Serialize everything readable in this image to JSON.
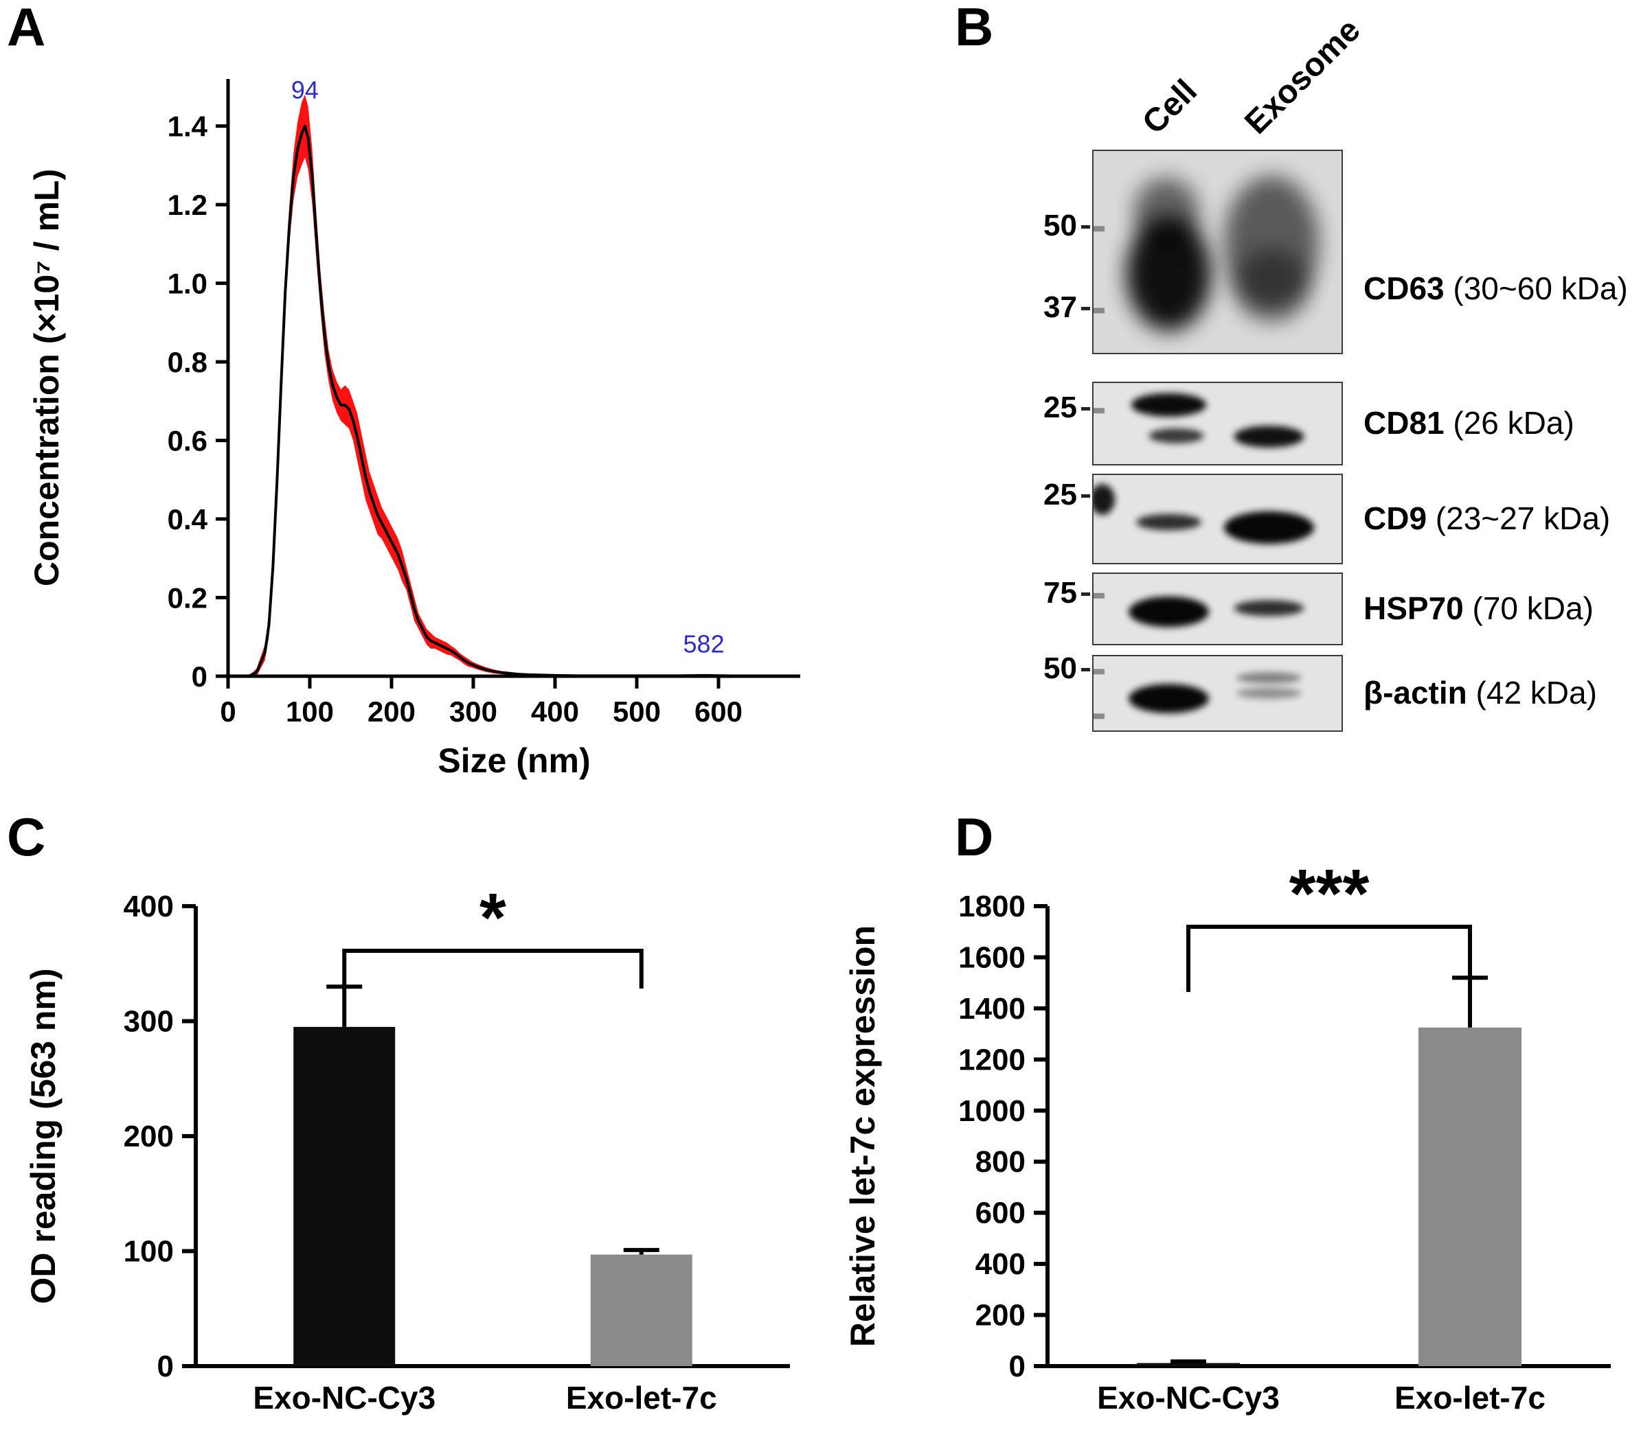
{
  "panels": {
    "a": {
      "label": "A"
    },
    "b": {
      "label": "B"
    },
    "c": {
      "label": "C"
    },
    "d": {
      "label": "D"
    }
  },
  "chart_data": [
    {
      "id": "chart-a",
      "panel": "A",
      "type": "line",
      "title": "",
      "xlabel": "Size (nm)",
      "ylabel": "Concentration (×10⁷ / mL)",
      "xlim": [
        0,
        700
      ],
      "ylim": [
        0,
        1.52
      ],
      "xticks": [
        [
          0,
          "0"
        ],
        [
          100,
          "100"
        ],
        [
          200,
          "200"
        ],
        [
          300,
          "300"
        ],
        [
          400,
          "400"
        ],
        [
          500,
          "500"
        ],
        [
          600,
          "600"
        ]
      ],
      "yticks": [
        [
          0,
          "0"
        ],
        [
          0.2,
          "0.2"
        ],
        [
          0.4,
          "0.4"
        ],
        [
          0.6,
          "0.6"
        ],
        [
          0.8,
          "0.8"
        ],
        [
          1.0,
          "1.0"
        ],
        [
          1.2,
          "1.2"
        ],
        [
          1.4,
          "1.4"
        ]
      ],
      "line_color": "#000000",
      "band_color": "#ff1111",
      "annotation_color": "#2a2ad0",
      "annotations": [
        {
          "text": "94",
          "x": 94,
          "y": 1.47
        },
        {
          "text": "582",
          "x": 582,
          "y": 0.06
        }
      ],
      "points": [
        [
          25,
          0.0,
          0.0
        ],
        [
          35,
          0.01,
          0.01
        ],
        [
          45,
          0.06,
          0.02
        ],
        [
          50,
          0.13,
          0.03
        ],
        [
          55,
          0.28,
          0.04
        ],
        [
          60,
          0.5,
          0.05
        ],
        [
          65,
          0.75,
          0.05
        ],
        [
          70,
          0.98,
          0.05
        ],
        [
          75,
          1.15,
          0.05
        ],
        [
          80,
          1.27,
          0.06
        ],
        [
          85,
          1.34,
          0.07
        ],
        [
          90,
          1.38,
          0.08
        ],
        [
          94,
          1.4,
          0.08
        ],
        [
          98,
          1.37,
          0.08
        ],
        [
          103,
          1.27,
          0.07
        ],
        [
          108,
          1.12,
          0.06
        ],
        [
          113,
          0.98,
          0.05
        ],
        [
          118,
          0.87,
          0.05
        ],
        [
          123,
          0.79,
          0.04
        ],
        [
          128,
          0.74,
          0.04
        ],
        [
          133,
          0.71,
          0.04
        ],
        [
          138,
          0.69,
          0.04
        ],
        [
          143,
          0.69,
          0.05
        ],
        [
          148,
          0.68,
          0.05
        ],
        [
          153,
          0.65,
          0.05
        ],
        [
          158,
          0.61,
          0.06
        ],
        [
          163,
          0.56,
          0.06
        ],
        [
          168,
          0.51,
          0.06
        ],
        [
          173,
          0.47,
          0.05
        ],
        [
          178,
          0.44,
          0.05
        ],
        [
          183,
          0.41,
          0.05
        ],
        [
          188,
          0.39,
          0.04
        ],
        [
          193,
          0.37,
          0.04
        ],
        [
          198,
          0.35,
          0.04
        ],
        [
          203,
          0.33,
          0.04
        ],
        [
          208,
          0.31,
          0.04
        ],
        [
          213,
          0.28,
          0.04
        ],
        [
          218,
          0.25,
          0.03
        ],
        [
          223,
          0.21,
          0.03
        ],
        [
          228,
          0.17,
          0.03
        ],
        [
          233,
          0.14,
          0.02
        ],
        [
          238,
          0.12,
          0.02
        ],
        [
          243,
          0.1,
          0.02
        ],
        [
          248,
          0.09,
          0.02
        ],
        [
          253,
          0.085,
          0.015
        ],
        [
          258,
          0.08,
          0.015
        ],
        [
          263,
          0.075,
          0.015
        ],
        [
          268,
          0.07,
          0.015
        ],
        [
          273,
          0.065,
          0.012
        ],
        [
          278,
          0.058,
          0.012
        ],
        [
          283,
          0.05,
          0.01
        ],
        [
          288,
          0.042,
          0.01
        ],
        [
          293,
          0.035,
          0.01
        ],
        [
          298,
          0.03,
          0.008
        ],
        [
          305,
          0.024,
          0.007
        ],
        [
          315,
          0.017,
          0.006
        ],
        [
          325,
          0.012,
          0.005
        ],
        [
          335,
          0.009,
          0.004
        ],
        [
          345,
          0.007,
          0.004
        ],
        [
          355,
          0.005,
          0.003
        ],
        [
          365,
          0.004,
          0.003
        ],
        [
          380,
          0.003,
          0.002
        ],
        [
          400,
          0.002,
          0.002
        ],
        [
          430,
          0.001,
          0.001
        ],
        [
          470,
          0.001,
          0.001
        ],
        [
          510,
          0.001,
          0.001
        ],
        [
          550,
          0.001,
          0.001
        ],
        [
          582,
          0.002,
          0.002
        ],
        [
          610,
          0.001,
          0.001
        ],
        [
          650,
          0.0,
          0.0
        ]
      ]
    },
    {
      "id": "chart-c",
      "panel": "C",
      "type": "bar",
      "title": "",
      "xlabel": "",
      "ylabel": "OD reading (563 nm)",
      "ylim": [
        0,
        400
      ],
      "yticks": [
        [
          0,
          "0"
        ],
        [
          100,
          "100"
        ],
        [
          200,
          "200"
        ],
        [
          300,
          "300"
        ],
        [
          400,
          "400"
        ]
      ],
      "categories": [
        "Exo-NC-Cy3",
        "Exo-let-7c"
      ],
      "values": [
        295,
        97
      ],
      "errors": [
        35,
        4
      ],
      "bar_colors": [
        "#0d0d0d",
        "#8a8a8a"
      ],
      "significance": "*"
    },
    {
      "id": "chart-d",
      "panel": "D",
      "type": "bar",
      "title": "",
      "xlabel": "",
      "ylabel": "Relative let-7c expression",
      "ylim": [
        0,
        1800
      ],
      "yticks": [
        [
          0,
          "0"
        ],
        [
          200,
          "200"
        ],
        [
          400,
          "400"
        ],
        [
          600,
          "600"
        ],
        [
          800,
          "800"
        ],
        [
          1000,
          "1000"
        ],
        [
          1200,
          "1200"
        ],
        [
          1400,
          "1400"
        ],
        [
          1600,
          "1600"
        ],
        [
          1800,
          "1800"
        ]
      ],
      "categories": [
        "Exo-NC-Cy3",
        "Exo-let-7c"
      ],
      "values": [
        12,
        1325
      ],
      "errors": [
        6,
        195
      ],
      "bar_colors": [
        "#0d0d0d",
        "#8a8a8a"
      ],
      "significance": "***"
    }
  ],
  "western_blot": {
    "lane_labels": [
      "Cell",
      "Exosome"
    ],
    "rows": [
      {
        "protein": "CD63",
        "kda": "(30~60 kDa)",
        "mw_labels": [
          {
            "text": "50",
            "y": 0.38
          },
          {
            "text": "37",
            "y": 0.78
          }
        ],
        "ladder": [
          0.38,
          0.78
        ],
        "bands": [
          {
            "lane": 0,
            "x": 0.3,
            "y": 0.6,
            "rx": 0.17,
            "ry": 0.28,
            "opacity": 0.92,
            "blur": "big"
          },
          {
            "lane": 0,
            "x": 0.29,
            "y": 0.3,
            "rx": 0.13,
            "ry": 0.17,
            "opacity": 0.55,
            "blur": "big"
          },
          {
            "lane": 1,
            "x": 0.71,
            "y": 0.45,
            "rx": 0.19,
            "ry": 0.33,
            "opacity": 0.58,
            "blur": "big"
          },
          {
            "lane": 1,
            "x": 0.71,
            "y": 0.66,
            "rx": 0.15,
            "ry": 0.18,
            "opacity": 0.42,
            "blur": "big"
          }
        ]
      },
      {
        "protein": "CD81",
        "kda": "(26 kDa)",
        "mw_labels": [
          {
            "text": "25",
            "y": 0.33
          }
        ],
        "ladder": [
          0.33
        ],
        "bands": [
          {
            "lane": 0,
            "x": 0.3,
            "y": 0.26,
            "rx": 0.15,
            "ry": 0.14,
            "opacity": 0.95
          },
          {
            "lane": 0,
            "x": 0.33,
            "y": 0.63,
            "rx": 0.11,
            "ry": 0.09,
            "opacity": 0.75
          },
          {
            "lane": 1,
            "x": 0.7,
            "y": 0.64,
            "rx": 0.14,
            "ry": 0.13,
            "opacity": 0.92
          }
        ]
      },
      {
        "protein": "CD9",
        "kda": "(23~27 kDa)",
        "mw_labels": [
          {
            "text": "25",
            "y": 0.25
          }
        ],
        "ladder": [],
        "ladder_blob": {
          "x": 0.035,
          "y": 0.27,
          "rx": 0.05,
          "ry": 0.17,
          "opacity": 0.9
        },
        "bands": [
          {
            "lane": 0,
            "x": 0.3,
            "y": 0.52,
            "rx": 0.13,
            "ry": 0.09,
            "opacity": 0.8
          },
          {
            "lane": 1,
            "x": 0.7,
            "y": 0.58,
            "rx": 0.18,
            "ry": 0.18,
            "opacity": 0.97
          }
        ]
      },
      {
        "protein": "HSP70",
        "kda": "(70 kDa)",
        "mw_labels": [
          {
            "text": "75",
            "y": 0.3
          }
        ],
        "ladder": [
          0.3
        ],
        "bands": [
          {
            "lane": 0,
            "x": 0.3,
            "y": 0.52,
            "rx": 0.16,
            "ry": 0.21,
            "opacity": 0.97
          },
          {
            "lane": 1,
            "x": 0.7,
            "y": 0.47,
            "rx": 0.14,
            "ry": 0.11,
            "opacity": 0.8
          }
        ]
      },
      {
        "protein": "β-actin",
        "kda": "(42 kDa)",
        "mw_labels": [
          {
            "text": "50",
            "y": 0.2
          }
        ],
        "ladder": [
          0.2,
          0.78
        ],
        "bands": [
          {
            "lane": 0,
            "x": 0.3,
            "y": 0.55,
            "rx": 0.16,
            "ry": 0.19,
            "opacity": 0.97
          },
          {
            "lane": 1,
            "x": 0.7,
            "y": 0.28,
            "rx": 0.13,
            "ry": 0.07,
            "opacity": 0.45
          },
          {
            "lane": 1,
            "x": 0.7,
            "y": 0.48,
            "rx": 0.13,
            "ry": 0.07,
            "opacity": 0.38
          }
        ]
      }
    ]
  }
}
